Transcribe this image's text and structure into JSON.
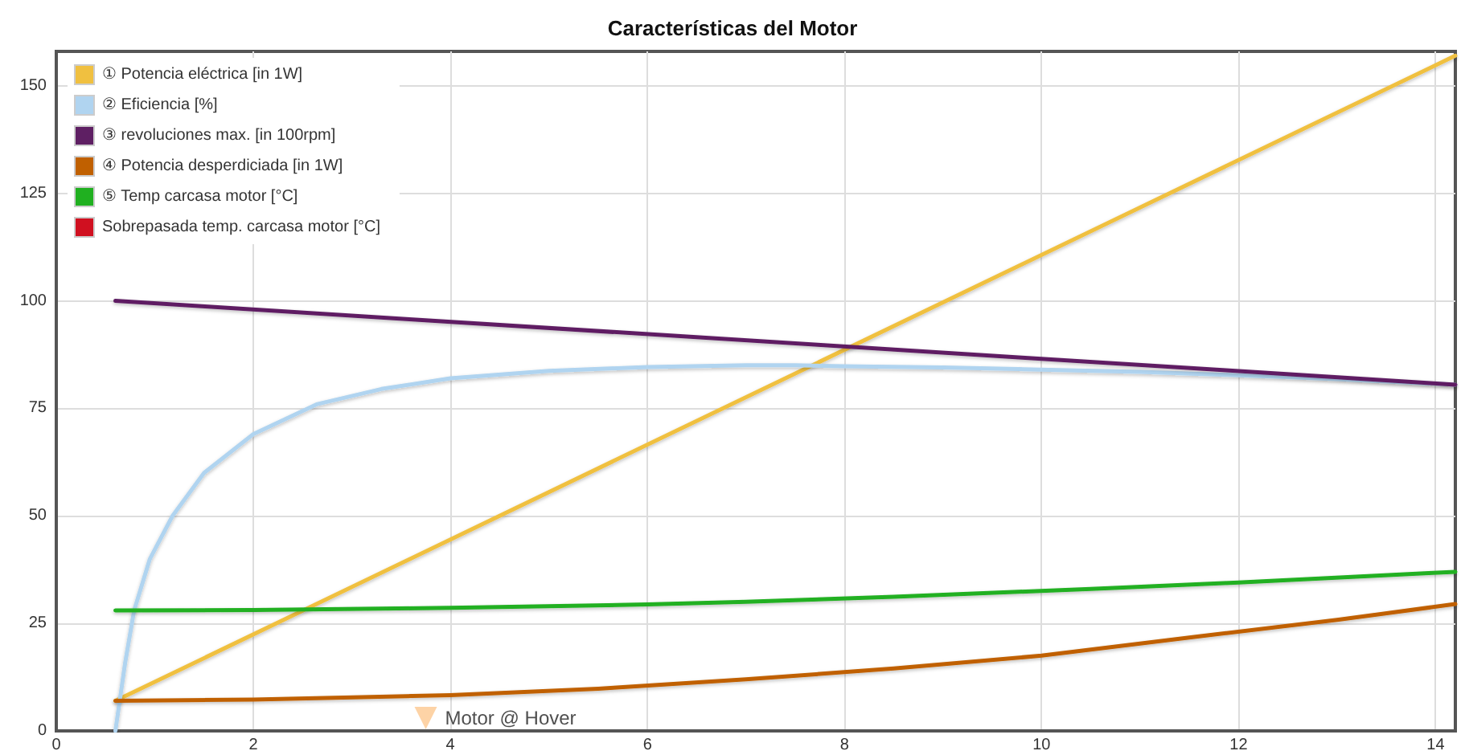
{
  "chart_data": {
    "type": "line",
    "title": "Características del Motor",
    "xlim": [
      0,
      14.2
    ],
    "xticks": [
      0,
      2,
      4,
      6,
      8,
      10,
      12,
      14
    ],
    "ylim": [
      0,
      158
    ],
    "yticks": [
      0,
      25,
      50,
      75,
      100,
      125,
      150
    ],
    "grid": true,
    "legend": "top left",
    "marker": "none",
    "line_style": "solid",
    "series": [
      {
        "name": "① Potencia eléctrica [in 1W]",
        "color": "#f0c040",
        "x": [
          0.6,
          14.2
        ],
        "values": [
          7,
          157
        ]
      },
      {
        "name": "② Eficiencia [%]",
        "color": "#b0d4f0",
        "x": [
          0.6,
          0.7,
          0.79,
          0.95,
          1.18,
          1.5,
          2.0,
          2.65,
          3.3,
          4.0,
          5,
          6,
          7,
          7.5,
          8,
          9,
          10,
          11,
          12,
          13,
          14.2
        ],
        "values": [
          0,
          16,
          28,
          40,
          50,
          60,
          69,
          76,
          79.5,
          82,
          83.7,
          84.6,
          85,
          85,
          84.8,
          84.5,
          84,
          83.5,
          82.7,
          81.8,
          80.5
        ]
      },
      {
        "name": "③ revoluciones max. [in 100rpm]",
        "color": "#5e1f63",
        "x": [
          0.6,
          14.2
        ],
        "values": [
          100,
          80.5
        ]
      },
      {
        "name": "④ Potencia desperdiciada [in 1W]",
        "color": "#c06000",
        "x": [
          0.6,
          2,
          4,
          5.5,
          7,
          8.5,
          10,
          11.6,
          13,
          14.2
        ],
        "values": [
          7,
          7.3,
          8.3,
          9.8,
          12,
          14.5,
          17.5,
          22,
          25.8,
          29.5
        ]
      },
      {
        "name": "⑤ Temp carcasa motor [°C]",
        "color": "#20b020",
        "x": [
          0.6,
          2,
          4,
          6,
          7,
          8.5,
          10.5,
          12,
          14.2
        ],
        "values": [
          28,
          28.1,
          28.6,
          29.4,
          30,
          31.2,
          33,
          34.5,
          37
        ]
      },
      {
        "name": "Sobrepasada temp. carcasa motor [°C]",
        "color": "#d01020"
      },
      {
        "type": "scatter",
        "marker": "triangle",
        "color": "#fcc890",
        "x": [
          3.75
        ],
        "values": [
          3
        ],
        "value_labels": [
          "Motor @ Hover"
        ]
      }
    ]
  }
}
